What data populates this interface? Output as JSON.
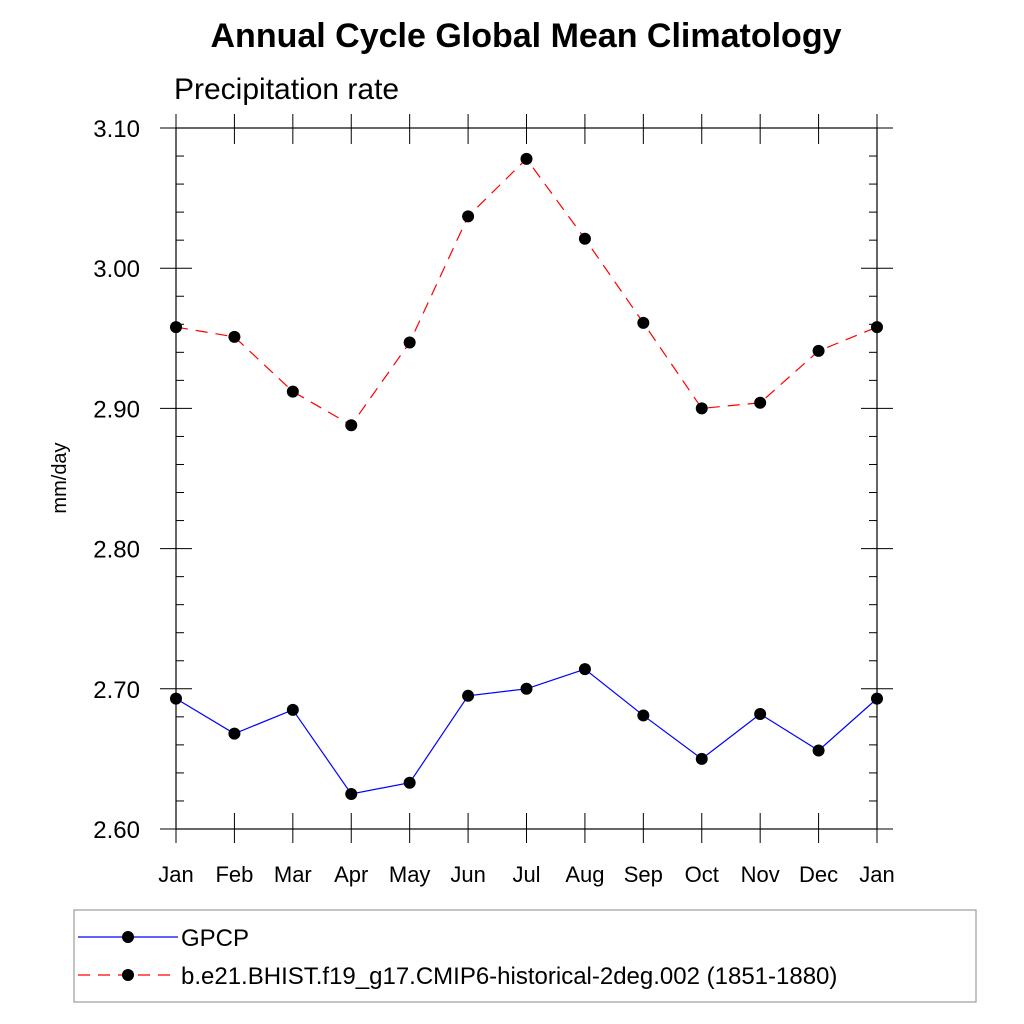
{
  "chart_data": {
    "type": "line",
    "title": "Annual Cycle Global Mean Climatology",
    "subtitle": "Precipitation rate",
    "xlabel": "",
    "ylabel": "mm/day",
    "categories": [
      "Jan",
      "Feb",
      "Mar",
      "Apr",
      "May",
      "Jun",
      "Jul",
      "Aug",
      "Sep",
      "Oct",
      "Nov",
      "Dec",
      "Jan"
    ],
    "ylim": [
      2.6,
      3.1
    ],
    "yticks": [
      "2.60",
      "2.70",
      "2.80",
      "2.90",
      "3.00",
      "3.10"
    ],
    "grid": false,
    "legend_position": "bottom",
    "series": [
      {
        "name": "GPCP",
        "color": "#0000ff",
        "line_style": "solid",
        "marker": "filled-circle",
        "values": [
          2.693,
          2.668,
          2.685,
          2.625,
          2.633,
          2.695,
          2.7,
          2.714,
          2.681,
          2.65,
          2.682,
          2.656,
          2.693
        ]
      },
      {
        "name": "b.e21.BHIST.f19_g17.CMIP6-historical-2deg.002 (1851-1880)",
        "color": "#ff0000",
        "line_style": "dashed",
        "marker": "filled-circle",
        "values": [
          2.958,
          2.951,
          2.912,
          2.888,
          2.947,
          3.037,
          3.078,
          3.021,
          2.961,
          2.9,
          2.904,
          2.941,
          2.958
        ]
      }
    ]
  }
}
